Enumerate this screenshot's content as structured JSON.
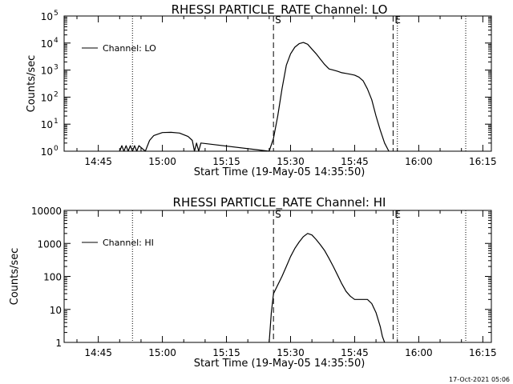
{
  "chart_data": [
    {
      "type": "line",
      "title": "RHESSI PARTICLE_RATE Channel: LO",
      "xlabel": "Start Time (19-May-05 14:35:50)",
      "ylabel": "Counts/sec",
      "yscale": "log",
      "xlim": [
        "14:37",
        "16:17"
      ],
      "ylim": [
        1,
        100000
      ],
      "x_ticks": [
        "14:45",
        "15:00",
        "15:15",
        "15:30",
        "15:45",
        "16:00",
        "16:15"
      ],
      "y_ticks": [
        {
          "value": 1,
          "base": "10",
          "exp": "0"
        },
        {
          "value": 10,
          "base": "10",
          "exp": "1"
        },
        {
          "value": 100,
          "base": "10",
          "exp": "2"
        },
        {
          "value": 1000,
          "base": "10",
          "exp": "3"
        },
        {
          "value": 10000,
          "base": "10",
          "exp": "4"
        },
        {
          "value": 100000,
          "base": "10",
          "exp": "5"
        }
      ],
      "markers": [
        {
          "label": "S",
          "time": "15:26",
          "style": "dashed"
        },
        {
          "label": "E",
          "time": "15:54",
          "style": "dashed"
        }
      ],
      "dotted_lines": [
        "14:37",
        "14:53",
        "15:55",
        "16:11"
      ],
      "series": [
        {
          "name": "Channel: LO",
          "x": [
            "14:50",
            "14:50:30",
            "14:51",
            "14:51:30",
            "14:52",
            "14:52:30",
            "14:53",
            "14:53:30",
            "14:54",
            "14:54:30",
            "14:56",
            "14:57",
            "14:58",
            "15:00",
            "15:02",
            "15:04",
            "15:06",
            "15:07",
            "15:07:30",
            "15:08",
            "15:08:30",
            "15:09",
            "15:25",
            "15:26",
            "15:27",
            "15:28",
            "15:29",
            "15:30",
            "15:31",
            "15:32",
            "15:33",
            "15:34",
            "15:35",
            "15:36",
            "15:37",
            "15:38",
            "15:39",
            "15:40",
            "15:41",
            "15:42",
            "15:43",
            "15:44",
            "15:45",
            "15:46",
            "15:47",
            "15:48",
            "15:49",
            "15:50",
            "15:51",
            "15:52",
            "15:53"
          ],
          "y": [
            1,
            1.6,
            1,
            1.6,
            1,
            1.6,
            1,
            1.6,
            1,
            1.6,
            1,
            2.5,
            3.8,
            4.9,
            5.0,
            4.7,
            3.5,
            2.5,
            1,
            2,
            1,
            2,
            1,
            3,
            20,
            200,
            1500,
            4000,
            7000,
            9500,
            10500,
            9000,
            6000,
            4000,
            2500,
            1600,
            1100,
            1000,
            900,
            800,
            750,
            700,
            650,
            550,
            400,
            200,
            80,
            20,
            6,
            2,
            1
          ]
        }
      ]
    },
    {
      "type": "line",
      "title": "RHESSI PARTICLE_RATE Channel: HI",
      "xlabel": "Start Time (19-May-05 14:35:50)",
      "ylabel": "Counts/sec",
      "yscale": "log",
      "xlim": [
        "14:37",
        "16:17"
      ],
      "ylim": [
        1,
        10000
      ],
      "x_ticks": [
        "14:45",
        "15:00",
        "15:15",
        "15:30",
        "15:45",
        "16:00",
        "16:15"
      ],
      "y_ticks": [
        {
          "value": 1,
          "label": "1"
        },
        {
          "value": 10,
          "label": "10"
        },
        {
          "value": 100,
          "label": "100"
        },
        {
          "value": 1000,
          "label": "1000"
        },
        {
          "value": 10000,
          "label": "10000"
        }
      ],
      "markers": [
        {
          "label": "S",
          "time": "15:26",
          "style": "dashed"
        },
        {
          "label": "E",
          "time": "15:54",
          "style": "dashed"
        }
      ],
      "dotted_lines": [
        "14:37",
        "14:53",
        "15:55",
        "16:11"
      ],
      "series": [
        {
          "name": "Channel: HI",
          "x": [
            "15:25",
            "15:25:30",
            "15:26",
            "15:27",
            "15:28",
            "15:29",
            "15:30",
            "15:31",
            "15:32",
            "15:33",
            "15:34",
            "15:35",
            "15:36",
            "15:37",
            "15:38",
            "15:39",
            "15:40",
            "15:41",
            "15:42",
            "15:43",
            "15:44",
            "15:45",
            "15:46",
            "15:47",
            "15:48",
            "15:49",
            "15:50",
            "15:51",
            "15:51:30",
            "15:52"
          ],
          "y": [
            1,
            8,
            30,
            55,
            100,
            200,
            400,
            700,
            1100,
            1600,
            2000,
            1800,
            1300,
            900,
            600,
            350,
            200,
            110,
            60,
            35,
            25,
            20,
            20,
            20,
            20,
            15,
            8,
            3,
            1.5,
            1
          ]
        }
      ]
    }
  ],
  "timestamp": "17-Oct-2021 05:06"
}
